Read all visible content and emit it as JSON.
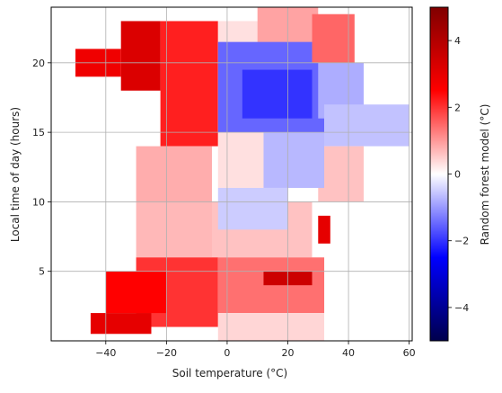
{
  "chart_data": {
    "type": "heatmap",
    "xlabel": "Soil temperature",
    "xlabel_unit": "(°C)",
    "ylabel": "Local time of day (hours)",
    "xlim": [
      -58,
      61
    ],
    "ylim": [
      0,
      24
    ],
    "xticks": [
      -40,
      -20,
      0,
      20,
      40,
      60
    ],
    "yticks": [
      5,
      10,
      15,
      20
    ],
    "grid": true,
    "colorbar": {
      "label": "Random forest model",
      "label_unit": "(°C)",
      "vmin": -5,
      "vmax": 5,
      "ticks": [
        -4,
        -2,
        0,
        2,
        4
      ],
      "colormap": "seismic",
      "colors": [
        "#00004c",
        "#0000ff",
        "#ffffff",
        "#ff0000",
        "#800000"
      ]
    },
    "regions": [
      {
        "x0": -22,
        "x1": -3,
        "y0": 14,
        "y1": 23,
        "value": 2.2
      },
      {
        "x0": -35,
        "x1": -22,
        "y0": 18,
        "y1": 23,
        "value": 3.2
      },
      {
        "x0": -50,
        "x1": -35,
        "y0": 19,
        "y1": 21,
        "value": 2.8
      },
      {
        "x0": -30,
        "x1": -5,
        "y0": 10,
        "y1": 14,
        "value": 0.8
      },
      {
        "x0": -3,
        "x1": 12,
        "y0": 11,
        "y1": 23,
        "value": 0.3
      },
      {
        "x0": 10,
        "x1": 30,
        "y0": 21,
        "y1": 24,
        "value": 0.9
      },
      {
        "x0": -3,
        "x1": 32,
        "y0": 15,
        "y1": 21.5,
        "value": -1.5
      },
      {
        "x0": 5,
        "x1": 28,
        "y0": 16,
        "y1": 19.5,
        "value": -2.0
      },
      {
        "x0": 30,
        "x1": 45,
        "y0": 16,
        "y1": 20,
        "value": -0.8
      },
      {
        "x0": 32,
        "x1": 60,
        "y0": 14,
        "y1": 17,
        "value": -0.6
      },
      {
        "x0": 30,
        "x1": 45,
        "y0": 10,
        "y1": 14,
        "value": 0.6
      },
      {
        "x0": 12,
        "x1": 32,
        "y0": 11,
        "y1": 15,
        "value": -0.7
      },
      {
        "x0": 28,
        "x1": 42,
        "y0": 20,
        "y1": 23.5,
        "value": 1.5
      },
      {
        "x0": 30,
        "x1": 34,
        "y0": 7,
        "y1": 9,
        "value": 3.0
      },
      {
        "x0": -30,
        "x1": -3,
        "y0": 6,
        "y1": 10,
        "value": 0.7
      },
      {
        "x0": -5,
        "x1": 28,
        "y0": 6,
        "y1": 10,
        "value": 0.6
      },
      {
        "x0": -3,
        "x1": 20,
        "y0": 8,
        "y1": 11,
        "value": -0.5
      },
      {
        "x0": -30,
        "x1": -3,
        "y0": 1,
        "y1": 6,
        "value": 2.0
      },
      {
        "x0": -40,
        "x1": -20,
        "y0": 2,
        "y1": 5,
        "value": 2.5
      },
      {
        "x0": -3,
        "x1": 32,
        "y0": 2,
        "y1": 6,
        "value": 1.4
      },
      {
        "x0": 12,
        "x1": 28,
        "y0": 4,
        "y1": 5,
        "value": 3.5
      },
      {
        "x0": -3,
        "x1": 32,
        "y0": 0,
        "y1": 2,
        "value": 0.4
      },
      {
        "x0": -45,
        "x1": -25,
        "y0": 0.5,
        "y1": 2,
        "value": 3.0
      }
    ]
  }
}
